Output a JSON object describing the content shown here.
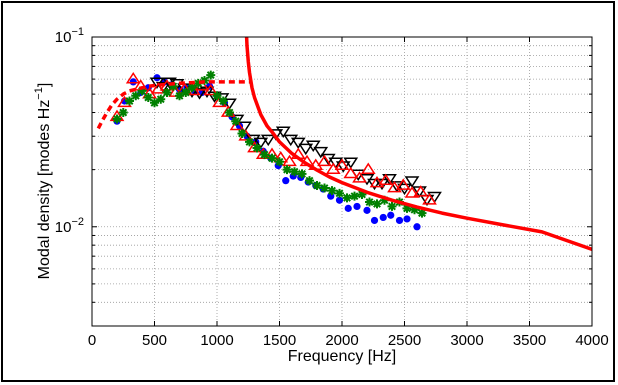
{
  "chart_data": {
    "type": "scatter",
    "title": "",
    "xlabel": "Frequency [Hz]",
    "ylabel_main": "Modal density [modes Hz",
    "ylabel_sup": "−1",
    "ylabel_end": "]",
    "xlim": [
      0,
      4000
    ],
    "ylim": [
      0.003,
      0.1
    ],
    "yscale": "log",
    "grid": true,
    "x_ticks": [
      0,
      500,
      1000,
      1500,
      2000,
      2500,
      3000,
      3500,
      4000
    ],
    "x_tick_labels": [
      "0",
      "500",
      "1000",
      "1500",
      "2000",
      "2500",
      "3000",
      "3500",
      "4000"
    ],
    "y_ticks": [
      0.01,
      0.1
    ],
    "y_tick_base": "10",
    "y_tick_exps": [
      "−2",
      "−1"
    ],
    "colors": {
      "blue": "#0000ff",
      "black": "#000000",
      "red": "#ff0000",
      "green": "#008000",
      "curve": "#ff0000"
    },
    "series": [
      {
        "marker": "circle",
        "color": "#0000ff",
        "x": [
          200,
          260,
          330,
          390,
          450,
          520,
          580,
          640,
          700,
          760,
          820,
          880,
          940,
          1000,
          1060,
          1120,
          1180,
          1240,
          1310,
          1370,
          1430,
          1490,
          1550,
          1610,
          1670,
          1730,
          1790,
          1850,
          1910,
          1980,
          2050,
          2120,
          2200,
          2260,
          2330,
          2390,
          2460,
          2520,
          2600
        ],
        "y": [
          0.036,
          0.046,
          0.058,
          0.051,
          0.054,
          0.061,
          0.058,
          0.056,
          0.053,
          0.054,
          0.052,
          0.051,
          0.055,
          0.049,
          0.045,
          0.038,
          0.034,
          0.03,
          0.028,
          0.025,
          0.023,
          0.021,
          0.0175,
          0.0185,
          0.0182,
          0.0172,
          0.0165,
          0.0158,
          0.0145,
          0.0138,
          0.0125,
          0.0128,
          0.0122,
          0.0108,
          0.0112,
          0.0115,
          0.0108,
          0.011,
          0.01
        ]
      },
      {
        "marker": "triangle-down",
        "color": "#000000",
        "x": [
          520,
          570,
          620,
          680,
          740,
          800,
          860,
          920,
          980,
          1040,
          1100,
          1160,
          1220,
          1290,
          1350,
          1410,
          1470,
          1530,
          1590,
          1650,
          1710,
          1770,
          1830,
          1890,
          1950,
          2010,
          2070,
          2130,
          2200,
          2260,
          2320,
          2380,
          2440,
          2500,
          2560,
          2620,
          2680,
          2740
        ],
        "y": [
          0.058,
          0.055,
          0.058,
          0.057,
          0.054,
          0.052,
          0.051,
          0.052,
          0.049,
          0.048,
          0.045,
          0.037,
          0.034,
          0.029,
          0.028,
          0.029,
          0.031,
          0.032,
          0.029,
          0.028,
          0.026,
          0.027,
          0.025,
          0.023,
          0.022,
          0.021,
          0.022,
          0.019,
          0.018,
          0.017,
          0.017,
          0.018,
          0.0165,
          0.016,
          0.0175,
          0.0155,
          0.014,
          0.0145
        ]
      },
      {
        "marker": "triangle-up",
        "color": "#ff0000",
        "x": [
          200,
          260,
          330,
          390,
          460,
          530,
          600,
          670,
          740,
          810,
          880,
          950,
          1020,
          1090,
          1160,
          1230,
          1300,
          1370,
          1440,
          1510,
          1580,
          1650,
          1720,
          1790,
          1860,
          1930,
          2000,
          2070,
          2140,
          2210,
          2280,
          2350,
          2420,
          2490,
          2560,
          2630,
          2700
        ],
        "y": [
          0.038,
          0.045,
          0.06,
          0.055,
          0.05,
          0.053,
          0.055,
          0.051,
          0.053,
          0.052,
          0.055,
          0.052,
          0.045,
          0.04,
          0.034,
          0.03,
          0.026,
          0.024,
          0.024,
          0.023,
          0.022,
          0.024,
          0.022,
          0.021,
          0.022,
          0.02,
          0.021,
          0.019,
          0.018,
          0.02,
          0.017,
          0.0175,
          0.016,
          0.0165,
          0.015,
          0.0152,
          0.0138
        ]
      },
      {
        "marker": "asterisk",
        "color": "#008000",
        "x": [
          200,
          250,
          300,
          350,
          400,
          450,
          500,
          550,
          600,
          650,
          700,
          750,
          800,
          850,
          900,
          950,
          1000,
          1050,
          1100,
          1150,
          1200,
          1260,
          1320,
          1380,
          1440,
          1500,
          1560,
          1620,
          1680,
          1740,
          1800,
          1860,
          1920,
          1980,
          2040,
          2100,
          2160,
          2220,
          2280,
          2340,
          2400,
          2460,
          2520,
          2580,
          2640
        ],
        "y": [
          0.037,
          0.04,
          0.046,
          0.049,
          0.052,
          0.048,
          0.045,
          0.047,
          0.051,
          0.055,
          0.049,
          0.051,
          0.054,
          0.057,
          0.059,
          0.063,
          0.049,
          0.046,
          0.04,
          0.036,
          0.031,
          0.028,
          0.026,
          0.024,
          0.023,
          0.022,
          0.02,
          0.0195,
          0.019,
          0.0175,
          0.0165,
          0.016,
          0.0155,
          0.015,
          0.0142,
          0.0145,
          0.0148,
          0.0135,
          0.0132,
          0.0138,
          0.0128,
          0.0135,
          0.0125,
          0.0123,
          0.0118
        ]
      }
    ],
    "curves": [
      {
        "style": "dashed",
        "color": "#ff0000",
        "x": [
          50,
          80,
          120,
          160,
          200,
          250,
          300,
          350,
          400,
          450,
          500,
          560,
          620,
          700,
          800,
          900,
          1000,
          1100,
          1200,
          1280
        ],
        "y": [
          0.033,
          0.036,
          0.04,
          0.044,
          0.047,
          0.05,
          0.052,
          0.053,
          0.054,
          0.055,
          0.0555,
          0.056,
          0.0565,
          0.057,
          0.0575,
          0.058,
          0.058,
          0.058,
          0.058,
          0.058
        ]
      },
      {
        "style": "solid",
        "color": "#ff0000",
        "x": [
          1237,
          1240,
          1250,
          1260,
          1280,
          1300,
          1350,
          1400,
          1450,
          1500,
          1600,
          1700,
          1800,
          1900,
          2000,
          2200,
          2400,
          2600,
          2800,
          3000,
          3300,
          3600,
          4000
        ],
        "y": [
          0.1,
          0.09,
          0.074,
          0.065,
          0.054,
          0.048,
          0.039,
          0.034,
          0.031,
          0.028,
          0.0243,
          0.0218,
          0.0199,
          0.0183,
          0.0171,
          0.0152,
          0.0138,
          0.0127,
          0.0118,
          0.0111,
          0.0102,
          0.0094,
          0.0076
        ]
      }
    ]
  }
}
